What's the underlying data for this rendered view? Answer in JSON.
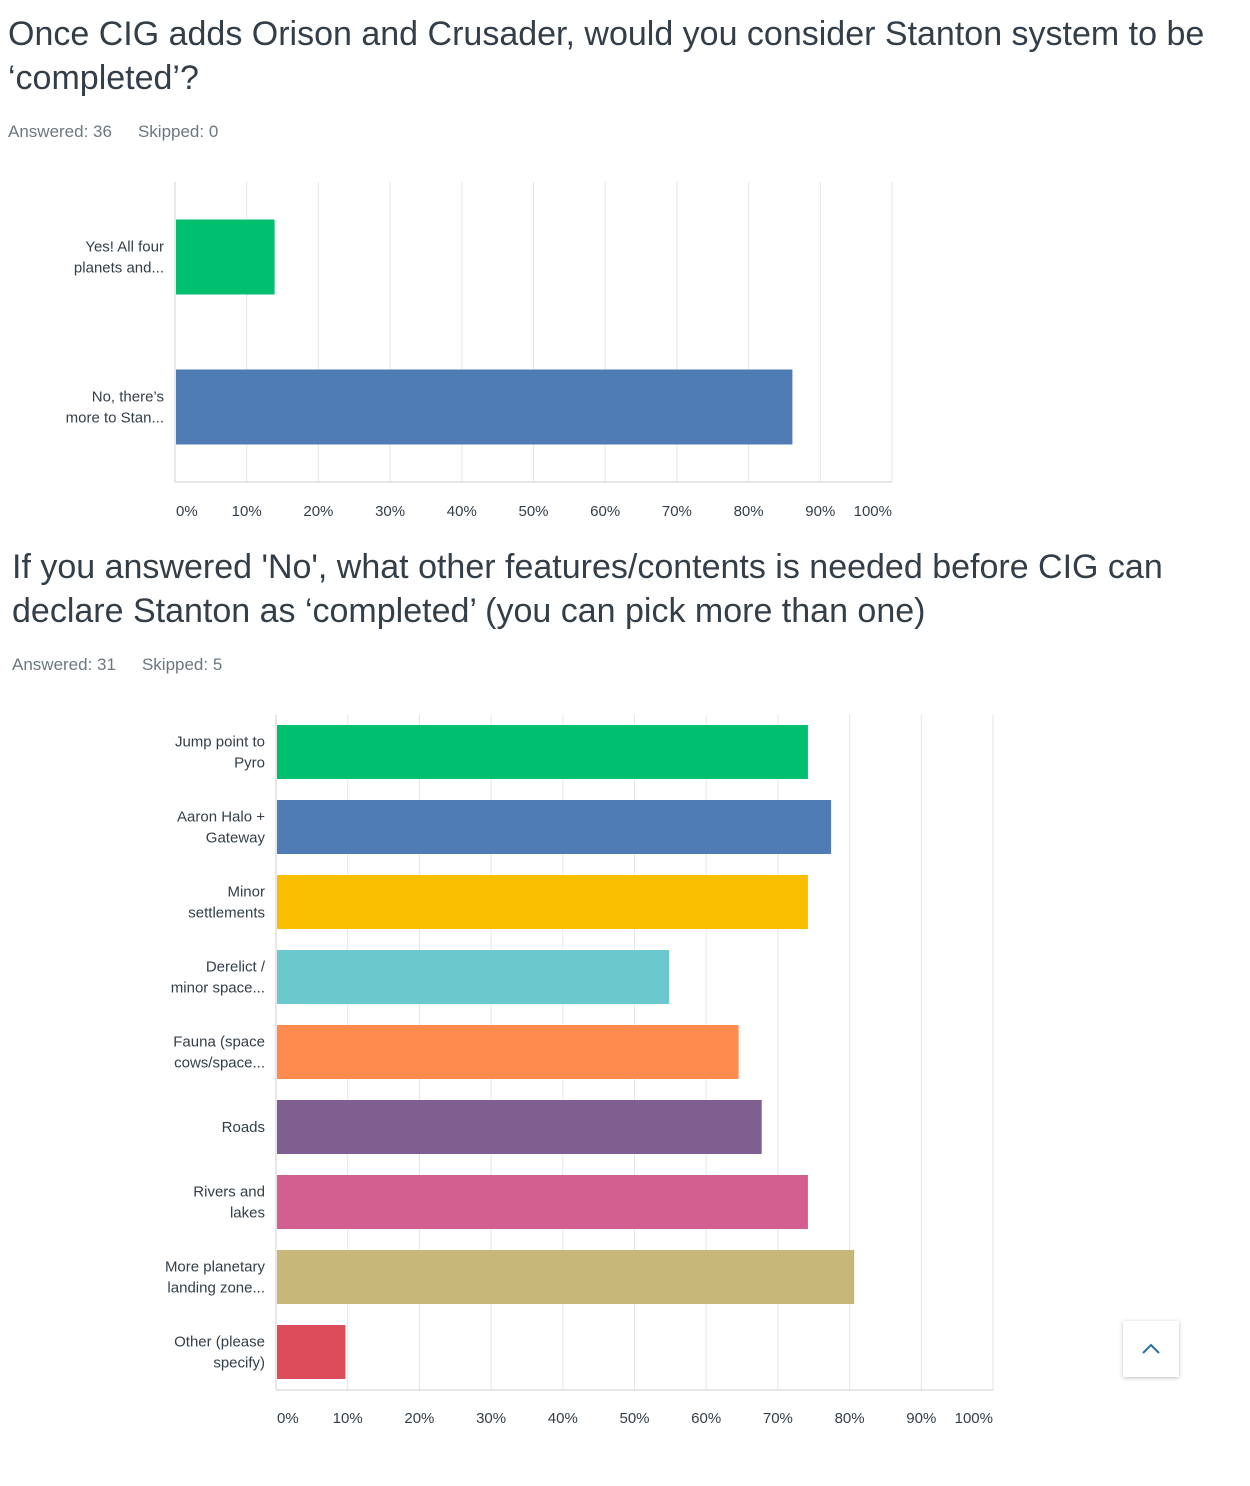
{
  "questions": [
    {
      "title": "Once CIG adds Orison and Crusader, would you consider Stanton system to be ‘completed’?",
      "answered": "Answered: 36",
      "skipped": "Skipped: 0"
    },
    {
      "title": "If you answered 'No', what other features/contents is needed before CIG can declare Stanton as ‘completed’ (you can pick more than one)",
      "answered": "Answered: 31",
      "skipped": "Skipped: 5"
    }
  ],
  "chart_data": [
    {
      "type": "bar",
      "orientation": "horizontal",
      "xlim": [
        0,
        100
      ],
      "grid": true,
      "ticks": [
        "0%",
        "10%",
        "20%",
        "30%",
        "40%",
        "50%",
        "60%",
        "70%",
        "80%",
        "90%",
        "100%"
      ],
      "categories": [
        [
          "Yes! All four",
          "planets and..."
        ],
        [
          "No, there’s",
          "more to Stan..."
        ]
      ],
      "values": [
        13.89,
        86.11
      ],
      "colors": [
        "#00bf6f",
        "#507cb6"
      ]
    },
    {
      "type": "bar",
      "orientation": "horizontal",
      "xlim": [
        0,
        100
      ],
      "grid": true,
      "ticks": [
        "0%",
        "10%",
        "20%",
        "30%",
        "40%",
        "50%",
        "60%",
        "70%",
        "80%",
        "90%",
        "100%"
      ],
      "categories": [
        [
          "Jump point to",
          "Pyro"
        ],
        [
          "Aaron Halo +",
          "Gateway"
        ],
        [
          "Minor",
          "settlements"
        ],
        [
          "Derelict /",
          "minor space..."
        ],
        [
          "Fauna (space",
          "cows/space..."
        ],
        [
          "Roads"
        ],
        [
          "Rivers and",
          "lakes"
        ],
        [
          "More planetary",
          "landing zone..."
        ],
        [
          "Other (please",
          "specify)"
        ]
      ],
      "values": [
        74.19,
        77.42,
        74.19,
        54.84,
        64.52,
        67.74,
        74.19,
        80.65,
        9.68
      ],
      "colors": [
        "#00bf6f",
        "#507cb6",
        "#f9be00",
        "#6bc8cd",
        "#ff8b4f",
        "#7f5f90",
        "#d25f90",
        "#c7b879",
        "#dc4c5a"
      ]
    }
  ],
  "scroll_top_icon": "chevron-up-icon"
}
